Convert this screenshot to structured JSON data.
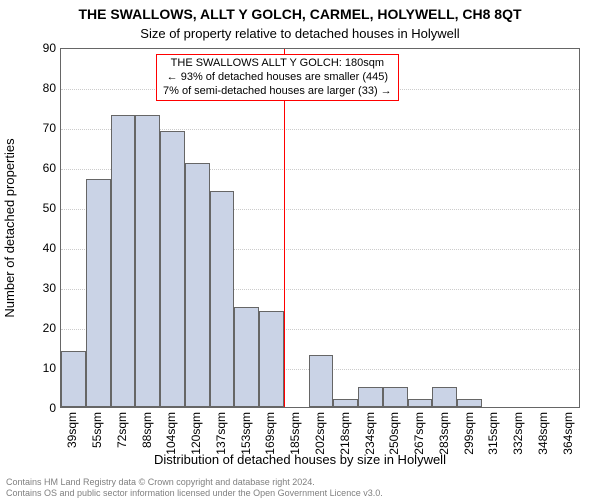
{
  "chart": {
    "type": "histogram",
    "title_line1": "THE SWALLOWS, ALLT Y GOLCH, CARMEL, HOLYWELL, CH8 8QT",
    "title_line2": "Size of property relative to detached houses in Holywell",
    "title_fontsize": 14,
    "subtitle_fontsize": 13,
    "xlabel": "Distribution of detached houses by size in Holywell",
    "ylabel": "Number of detached properties",
    "axis_label_fontsize": 13,
    "tick_fontsize": 12,
    "background_color": "#ffffff",
    "plot_border_color": "#666666",
    "grid_color": "#cccccc",
    "bar_fill": "#cad3e6",
    "bar_border": "#666666",
    "ylim": [
      0,
      90
    ],
    "ytick_step": 10,
    "x_categories": [
      "39sqm",
      "55sqm",
      "72sqm",
      "88sqm",
      "104sqm",
      "120sqm",
      "137sqm",
      "153sqm",
      "169sqm",
      "185sqm",
      "202sqm",
      "218sqm",
      "234sqm",
      "250sqm",
      "267sqm",
      "283sqm",
      "299sqm",
      "315sqm",
      "332sqm",
      "348sqm",
      "364sqm"
    ],
    "values": [
      14,
      57,
      73,
      73,
      69,
      61,
      54,
      25,
      24,
      0,
      13,
      2,
      5,
      5,
      2,
      5,
      2,
      0,
      0,
      0,
      0
    ],
    "marker": {
      "index_between": 9,
      "color": "#ff0000",
      "line_width": 1
    },
    "annotation": {
      "lines": [
        "THE SWALLOWS ALLT Y GOLCH: 180sqm",
        "← 93% of detached houses are smaller (445)",
        "7% of semi-detached houses are larger (33) →"
      ],
      "border_color": "#ff0000",
      "fontsize": 11
    },
    "footer": {
      "line1": "Contains HM Land Registry data © Crown copyright and database right 2024.",
      "line2": "Contains OS and public sector information licensed under the Open Government Licence v3.0.",
      "fontsize": 9,
      "color": "#808080"
    }
  }
}
